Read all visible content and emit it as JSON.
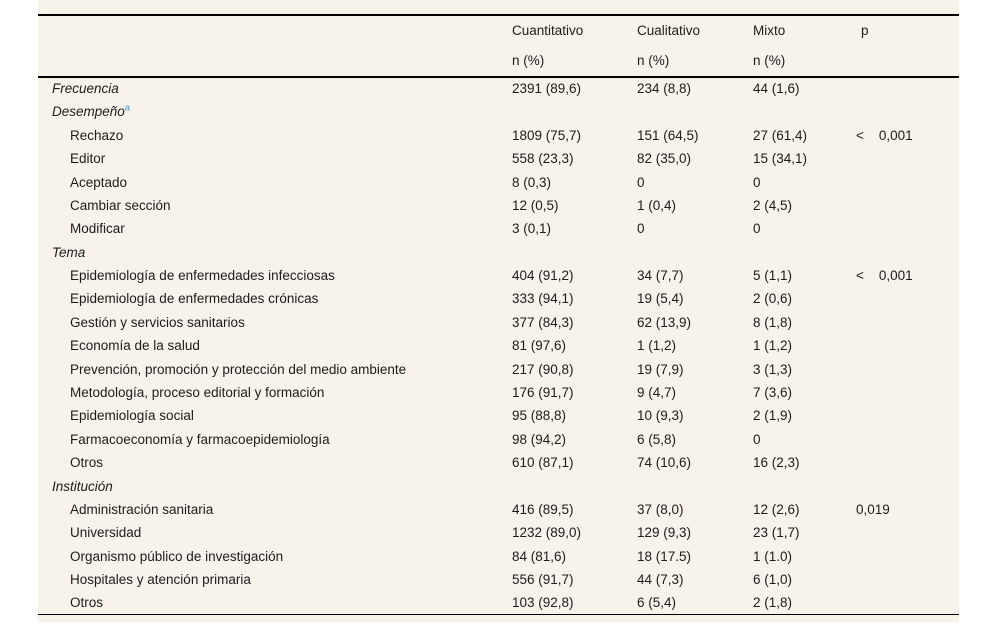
{
  "colors": {
    "panel_background": "#f7f3ea",
    "rule": "#000000",
    "text": "#1c1c1c",
    "footnote_marker": "#3b9cd9"
  },
  "table": {
    "columns": [
      {
        "label": "Cuantitativo",
        "sub": "n (%)"
      },
      {
        "label": "Cualitativo",
        "sub": "n (%)"
      },
      {
        "label": "Mixto",
        "sub": "n (%)"
      },
      {
        "label": "p",
        "sub": ""
      }
    ],
    "rows": [
      {
        "label": "Frecuencia",
        "section": true,
        "sup": "",
        "c1": "2391 (89,6)",
        "c2": "234 (8,8)",
        "c3": "44 (1,6)",
        "p": ""
      },
      {
        "label": "Desempeño",
        "section": true,
        "sup": "a",
        "c1": "",
        "c2": "",
        "c3": "",
        "p": ""
      },
      {
        "label": "Rechazo",
        "section": false,
        "sup": "",
        "c1": "1809 (75,7)",
        "c2": "151 (64,5)",
        "c3": "27 (61,4)",
        "p": "<    0,001"
      },
      {
        "label": "Editor",
        "section": false,
        "sup": "",
        "c1": "558 (23,3)",
        "c2": "82 (35,0)",
        "c3": "15 (34,1)",
        "p": ""
      },
      {
        "label": "Aceptado",
        "section": false,
        "sup": "",
        "c1": "8 (0,3)",
        "c2": "0",
        "c3": "0",
        "p": ""
      },
      {
        "label": "Cambiar sección",
        "section": false,
        "sup": "",
        "c1": "12 (0,5)",
        "c2": "1 (0,4)",
        "c3": "2 (4,5)",
        "p": ""
      },
      {
        "label": "Modificar",
        "section": false,
        "sup": "",
        "c1": "3 (0,1)",
        "c2": "0",
        "c3": "0",
        "p": ""
      },
      {
        "label": "Tema",
        "section": true,
        "sup": "",
        "c1": "",
        "c2": "",
        "c3": "",
        "p": ""
      },
      {
        "label": "Epidemiología de enfermedades infecciosas",
        "section": false,
        "sup": "",
        "c1": "404 (91,2)",
        "c2": "34 (7,7)",
        "c3": "5 (1,1)",
        "p": "<    0,001"
      },
      {
        "label": "Epidemiología de enfermedades crónicas",
        "section": false,
        "sup": "",
        "c1": "333 (94,1)",
        "c2": "19 (5,4)",
        "c3": "2 (0,6)",
        "p": ""
      },
      {
        "label": "Gestión y servicios sanitarios",
        "section": false,
        "sup": "",
        "c1": "377 (84,3)",
        "c2": "62 (13,9)",
        "c3": "8 (1,8)",
        "p": ""
      },
      {
        "label": "Economía de la salud",
        "section": false,
        "sup": "",
        "c1": "81 (97,6)",
        "c2": "1 (1,2)",
        "c3": "1 (1,2)",
        "p": ""
      },
      {
        "label": "Prevención, promoción y protección del medio ambiente",
        "section": false,
        "sup": "",
        "c1": "217 (90,8)",
        "c2": "19 (7,9)",
        "c3": "3 (1,3)",
        "p": ""
      },
      {
        "label": "Metodología, proceso editorial y formación",
        "section": false,
        "sup": "",
        "c1": "176 (91,7)",
        "c2": "9 (4,7)",
        "c3": "7 (3,6)",
        "p": ""
      },
      {
        "label": "Epidemiología social",
        "section": false,
        "sup": "",
        "c1": "95 (88,8)",
        "c2": "10 (9,3)",
        "c3": "2 (1,9)",
        "p": ""
      },
      {
        "label": "Farmacoeconomía y farmacoepidemiología",
        "section": false,
        "sup": "",
        "c1": "98 (94,2)",
        "c2": "6 (5,8)",
        "c3": "0",
        "p": ""
      },
      {
        "label": "Otros",
        "section": false,
        "sup": "",
        "c1": "610 (87,1)",
        "c2": "74 (10,6)",
        "c3": "16 (2,3)",
        "p": ""
      },
      {
        "label": "Institución",
        "section": true,
        "sup": "",
        "c1": "",
        "c2": "",
        "c3": "",
        "p": ""
      },
      {
        "label": "Administración sanitaria",
        "section": false,
        "sup": "",
        "c1": "416 (89,5)",
        "c2": "37 (8,0)",
        "c3": "12 (2,6)",
        "p": "0,019"
      },
      {
        "label": "Universidad",
        "section": false,
        "sup": "",
        "c1": "1232 (89,0)",
        "c2": "129 (9,3)",
        "c3": "23 (1,7)",
        "p": ""
      },
      {
        "label": "Organismo público de investigación",
        "section": false,
        "sup": "",
        "c1": "84 (81,6)",
        "c2": "18 (17.5)",
        "c3": "1 (1.0)",
        "p": ""
      },
      {
        "label": "Hospitales y atención primaria",
        "section": false,
        "sup": "",
        "c1": "556 (91,7)",
        "c2": "44 (7,3)",
        "c3": "6 (1,0)",
        "p": ""
      },
      {
        "label": "Otros",
        "section": false,
        "sup": "",
        "c1": "103 (92,8)",
        "c2": "6 (5,4)",
        "c3": "2 (1,8)",
        "p": ""
      }
    ]
  }
}
